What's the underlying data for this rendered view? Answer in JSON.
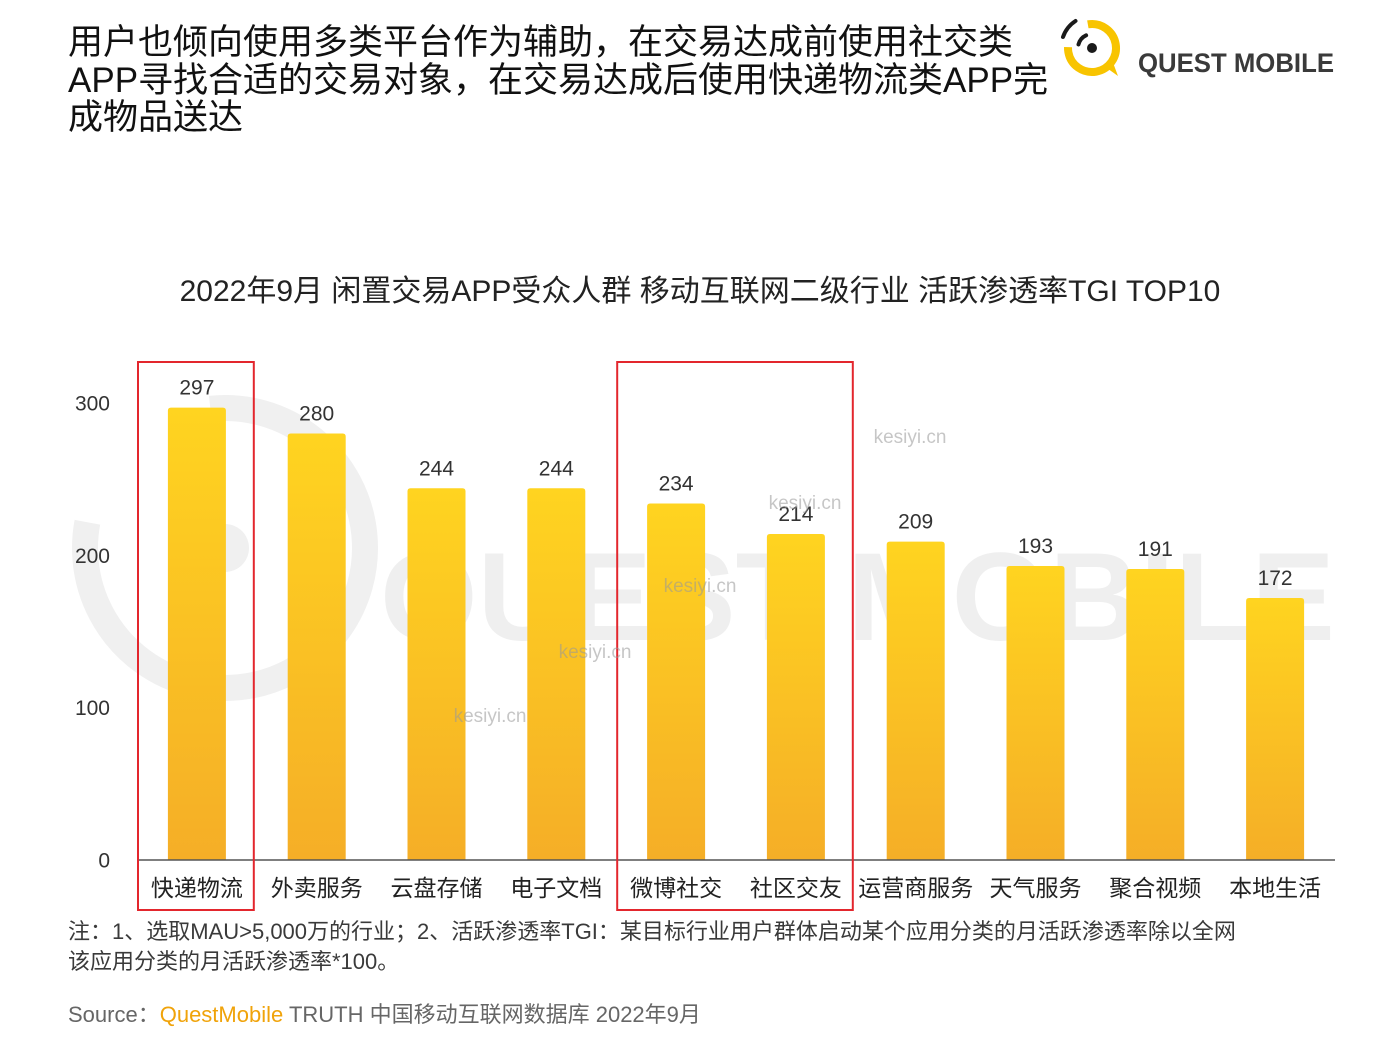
{
  "title": {
    "lines": [
      "用户也倾向使用多类平台作为辅助，在交易达成前使用社交类",
      "APP寻找合适的交易对象，在交易达成后使用快递物流类APP完",
      "成物品送达"
    ]
  },
  "logo": {
    "text": "QUEST MOBILE",
    "icon": "quest-mobile-logo-icon"
  },
  "chart_data": {
    "type": "bar",
    "title": "2022年9月 闲置交易APP受众人群 移动互联网二级行业 活跃渗透率TGI TOP10",
    "xlabel": "",
    "ylabel": "",
    "categories": [
      "快递物流",
      "外卖服务",
      "云盘存储",
      "电子文档",
      "微博社交",
      "社区交友",
      "运营商服务",
      "天气服务",
      "聚合视频",
      "本地生活"
    ],
    "values": [
      297,
      280,
      244,
      244,
      234,
      214,
      209,
      193,
      191,
      172
    ],
    "ylim": [
      0,
      300
    ],
    "yticks": [
      0,
      100,
      200,
      300
    ],
    "grid": false,
    "highlight_groups": [
      [
        0
      ],
      [
        4,
        5
      ]
    ],
    "colors": {
      "bar_top": "#FFD420",
      "bar_bottom": "#F5AE27",
      "highlight_box": "#E3262D",
      "axis": "#555555"
    }
  },
  "watermarks": {
    "brand": "QUEST MOBILE",
    "site": "kesiyi.cn"
  },
  "footnote": {
    "lines": [
      "注：1、选取MAU>5,000万的行业；2、活跃渗透率TGI：某目标行业用户群体启动某个应用分类的月活跃渗透率除以全网",
      "该应用分类的月活跃渗透率*100。"
    ]
  },
  "source": {
    "label": "Source：",
    "brand": "QuestMobile",
    "rest": "TRUTH 中国移动互联网数据库 2022年9月"
  },
  "colors": {
    "source_brand": "#F0A30A",
    "logo_yellow": "#F8C400"
  }
}
